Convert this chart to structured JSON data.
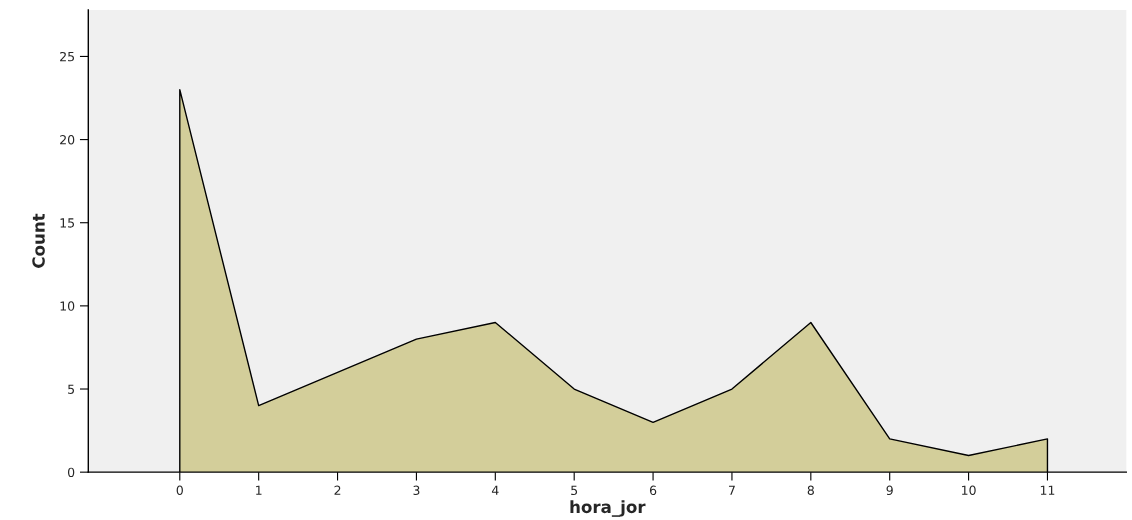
{
  "chart_data": {
    "type": "area",
    "xlabel": "hora_jor",
    "ylabel": "Count",
    "x": [
      0,
      1,
      2,
      3,
      4,
      5,
      6,
      7,
      8,
      9,
      10,
      11
    ],
    "series": [
      {
        "color": "#d3ce9a",
        "values": [
          23,
          4,
          6,
          8,
          9,
          5,
          3,
          5,
          9,
          2,
          1,
          2
        ]
      }
    ],
    "xlim": [
      -1.16,
      12
    ],
    "xticks": [
      0,
      1,
      2,
      3,
      4,
      5,
      6,
      7,
      8,
      9,
      10,
      11
    ],
    "ylim": [
      0,
      27.8
    ],
    "yticks": [
      0,
      5,
      10,
      15,
      20,
      25
    ],
    "grid": false
  }
}
